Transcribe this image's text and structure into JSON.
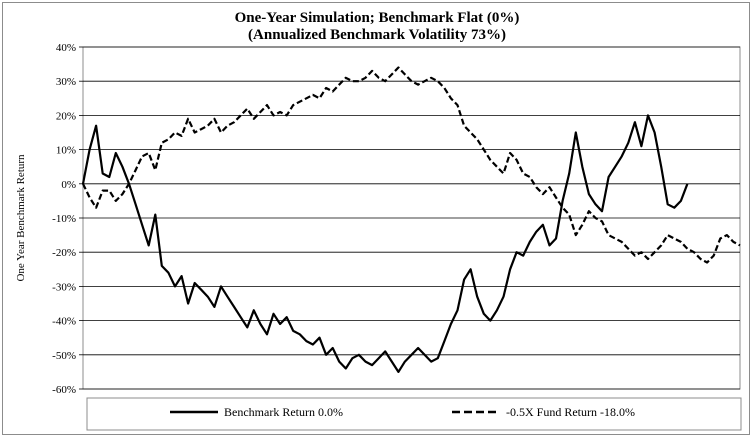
{
  "chart_data": {
    "type": "line",
    "title": "One-Year Simulation; Benchmark Flat (0%)",
    "subtitle": "(Annualized Benchmark Volatility 73%)",
    "ylabel": "One Year Benchmark Return",
    "xlabel": "",
    "ylim": [
      -60,
      40
    ],
    "yticks": [
      "40%",
      "30%",
      "20%",
      "10%",
      "0%",
      "-10%",
      "-20%",
      "-30%",
      "-40%",
      "-50%",
      "-60%"
    ],
    "grid": true,
    "legend_position": "bottom",
    "x": [
      0,
      10,
      20,
      30,
      40,
      50,
      60,
      70,
      80,
      90,
      100,
      110,
      120,
      130,
      140,
      150,
      160,
      170,
      180,
      190,
      200,
      210,
      220,
      230,
      240,
      250,
      260,
      270,
      280,
      290,
      300,
      310,
      320,
      330,
      340,
      350,
      360,
      370,
      380,
      390,
      400,
      410,
      420,
      430,
      440,
      450,
      460,
      470,
      480,
      490,
      500,
      510,
      520,
      530,
      540,
      550,
      560,
      570,
      580,
      590,
      600,
      610,
      620,
      630,
      640,
      650,
      660,
      670,
      680,
      690,
      700,
      710,
      720,
      730,
      740,
      750,
      760,
      770,
      780,
      790,
      800,
      810,
      820,
      830,
      840,
      850,
      860,
      870,
      880,
      890,
      900,
      910,
      920,
      930,
      940,
      950,
      960,
      970,
      980,
      990,
      1000
    ],
    "series": [
      {
        "name": "Benchmark Return 0.0%",
        "style": "solid",
        "color": "#000000",
        "values": [
          0,
          10,
          17,
          3,
          2,
          9,
          5,
          0,
          -6,
          -12,
          -18,
          -9,
          -24,
          -26,
          -30,
          -27,
          -35,
          -29,
          -31,
          -33,
          -36,
          -30,
          -33,
          -36,
          -39,
          -42,
          -37,
          -41,
          -44,
          -38,
          -41,
          -39,
          -43,
          -44,
          -46,
          -47,
          -45,
          -50,
          -48,
          -52,
          -54,
          -51,
          -50,
          -52,
          -53,
          -51,
          -49,
          -52,
          -55,
          -52,
          -50,
          -48,
          -50,
          -52,
          -51,
          -46,
          -41,
          -37,
          -28,
          -25,
          -33,
          -38,
          -40,
          -37,
          -33,
          -25,
          -20,
          -21,
          -17,
          -14,
          -12,
          -18,
          -16,
          -5,
          3,
          15,
          5,
          -3,
          -6,
          -8,
          2,
          5,
          8,
          12,
          18,
          11,
          20,
          15,
          5,
          -6,
          -7,
          -5,
          0,
          null,
          null,
          null,
          null,
          null,
          null,
          null,
          null
        ]
      },
      {
        "name": "-0.5X Fund Return -18.0%",
        "style": "dashed",
        "color": "#000000",
        "values": [
          0,
          -4,
          -7,
          -2,
          -2,
          -5,
          -3,
          0,
          4,
          8,
          9,
          4,
          12,
          13,
          15,
          14,
          19,
          15,
          16,
          17,
          19,
          15,
          17,
          18,
          20,
          22,
          19,
          21,
          23,
          20,
          21,
          20,
          23,
          24,
          25,
          26,
          25,
          28,
          27,
          29,
          31,
          30,
          30,
          31,
          33,
          31,
          30,
          32,
          34,
          32,
          30,
          29,
          30,
          31,
          30,
          28,
          25,
          23,
          17,
          15,
          13,
          10,
          7,
          5,
          3,
          9,
          7,
          3,
          2,
          -1,
          -3,
          -1,
          -4,
          -7,
          -9,
          -15,
          -12,
          -8,
          -10,
          -11,
          -15,
          -16,
          -17,
          -19,
          -21,
          -20,
          -22,
          -20,
          -18,
          -15,
          -16,
          -17,
          -19,
          -20,
          -22,
          -23,
          -21,
          -16,
          -15,
          -17,
          -18
        ]
      }
    ]
  }
}
